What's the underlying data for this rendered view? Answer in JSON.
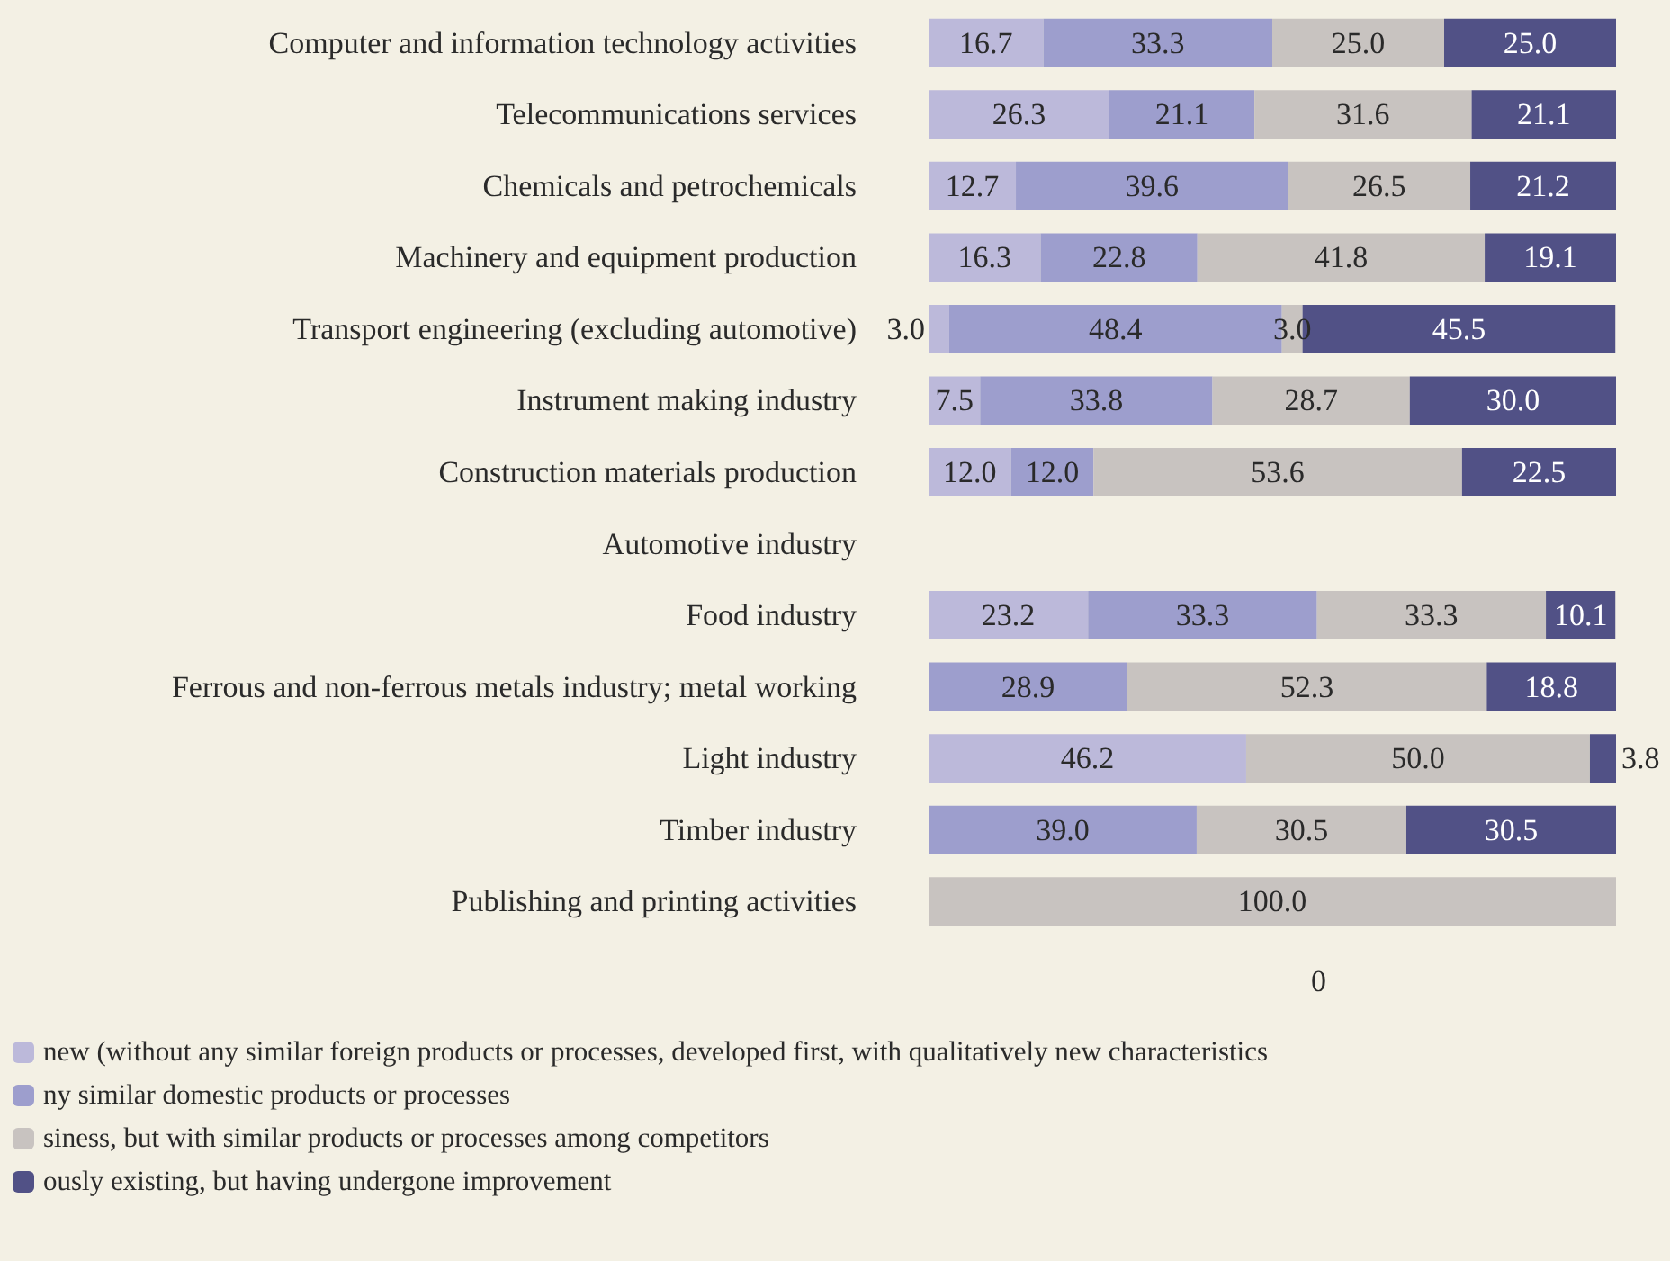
{
  "chart_data": {
    "type": "bar",
    "orientation": "horizontal",
    "stacked": true,
    "grid": false,
    "legend": "bottom left",
    "xlim": [
      0,
      100
    ],
    "tick_labels": "y",
    "categories": [
      "Computer and information technology activities",
      "Telecommunications services",
      "Chemicals and petrochemicals",
      "Machinery and equipment production",
      "Transport engineering (excluding automotive)",
      "Instrument making industry",
      "Construction materials production",
      "Automotive industry",
      "Food industry",
      "Ferrous and non-ferrous metals industry; metal working",
      "Light industry",
      "Timber industry",
      "Publishing and printing activities"
    ],
    "series": [
      {
        "name": "new (without any similar foreign products or processes, developed first, with qualitatively new characteristics",
        "color": "#bcb9da",
        "values": [
          16.7,
          26.3,
          12.7,
          16.3,
          3.0,
          7.5,
          12.0,
          null,
          23.2,
          null,
          46.2,
          null,
          null
        ],
        "value_labels": [
          "16.7",
          "26.3",
          "12.7",
          "16.3",
          "3.0",
          "7.5",
          "12.0",
          null,
          "23.2",
          null,
          "46.2",
          null,
          null
        ]
      },
      {
        "name": "ny similar domestic products or processes",
        "color": "#9d9ecd",
        "values": [
          33.3,
          21.1,
          39.6,
          22.8,
          48.4,
          33.8,
          12.0,
          null,
          33.3,
          28.9,
          null,
          39.0,
          null
        ],
        "value_labels": [
          "33.3",
          "21.1",
          "39.6",
          "22.8",
          "48.4",
          "33.8",
          "12.0",
          null,
          "33.3",
          "28.9",
          null,
          "39.0",
          null
        ]
      },
      {
        "name": "siness, but with similar products or processes among competitors",
        "color": "#c8c3c0",
        "values": [
          25.0,
          31.6,
          26.5,
          41.8,
          3.0,
          28.7,
          53.6,
          null,
          33.3,
          52.3,
          50.0,
          30.5,
          100.0
        ],
        "value_labels": [
          "25.0",
          "31.6",
          "26.5",
          "41.8",
          "3.0",
          "28.7",
          "53.6",
          null,
          "33.3",
          "52.3",
          "50.0",
          "30.5",
          "100.0"
        ]
      },
      {
        "name": "ously existing, but having undergone improvement",
        "color": "#515186",
        "values": [
          25.0,
          21.1,
          21.2,
          19.1,
          45.5,
          30.0,
          22.5,
          null,
          10.1,
          18.8,
          3.8,
          30.5,
          null
        ],
        "value_labels": [
          "25.0",
          "21.1",
          "21.2",
          "19.1",
          "45.5",
          "30.0",
          "22.5",
          null,
          "10.1",
          "18.8",
          "3.8",
          "30.5",
          null
        ]
      }
    ],
    "annotations": [
      "0"
    ]
  }
}
